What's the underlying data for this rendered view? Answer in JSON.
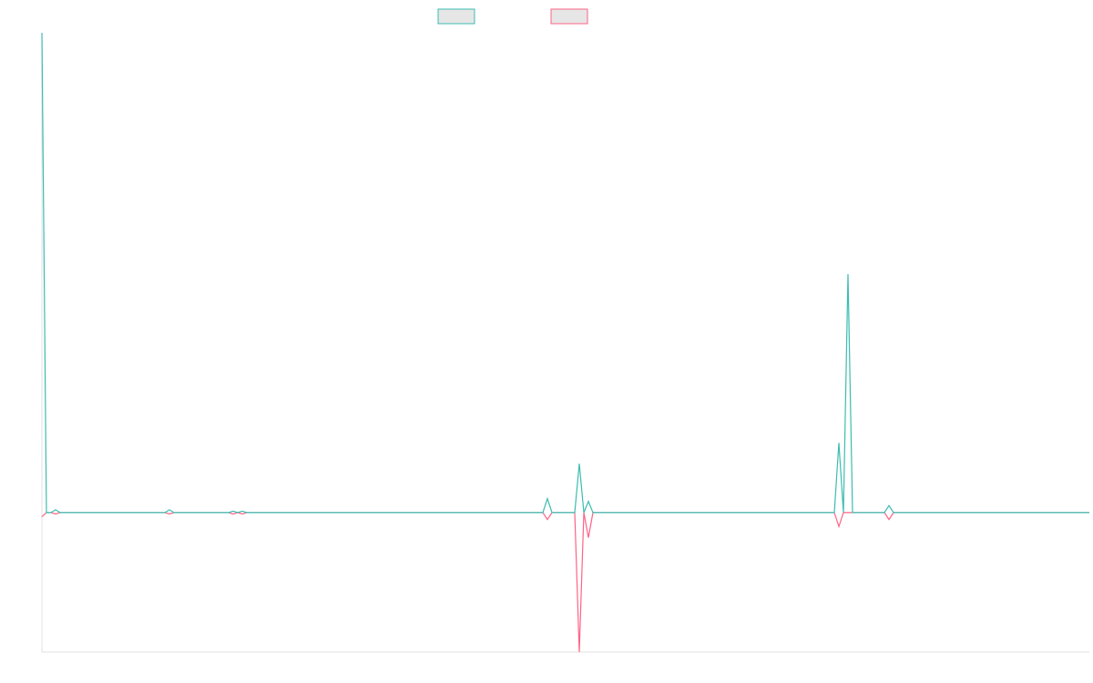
{
  "chart_data": {
    "type": "line",
    "x": [
      0,
      1,
      2,
      3,
      4,
      27,
      28,
      29,
      41,
      42,
      43,
      44,
      45,
      110,
      111,
      112,
      117,
      118,
      119,
      120,
      121,
      174,
      175,
      176,
      177,
      178,
      185,
      186,
      187,
      230
    ],
    "series": [
      {
        "color": "#ff6384",
        "values": [
          -0.03,
          0,
          0,
          -0.01,
          0,
          0,
          -0.01,
          0,
          0,
          -0.01,
          0,
          -0.01,
          0,
          0,
          -0.05,
          0,
          0,
          -1,
          0,
          -0.18,
          0,
          0,
          -0.1,
          0,
          0,
          0,
          0,
          -0.05,
          0,
          0
        ]
      },
      {
        "color": "#3cbcb0",
        "values": [
          3.44,
          0,
          0,
          0.02,
          0,
          0,
          0.02,
          0,
          0,
          0.01,
          0,
          0.01,
          0,
          0,
          0.1,
          0,
          0,
          0.35,
          0,
          0.08,
          0,
          0,
          0.5,
          0,
          1.71,
          0,
          0,
          0.05,
          0,
          0
        ]
      }
    ],
    "xlim": [
      0,
      230
    ],
    "ylim": [
      -1,
      3.44
    ],
    "legend": "top"
  }
}
